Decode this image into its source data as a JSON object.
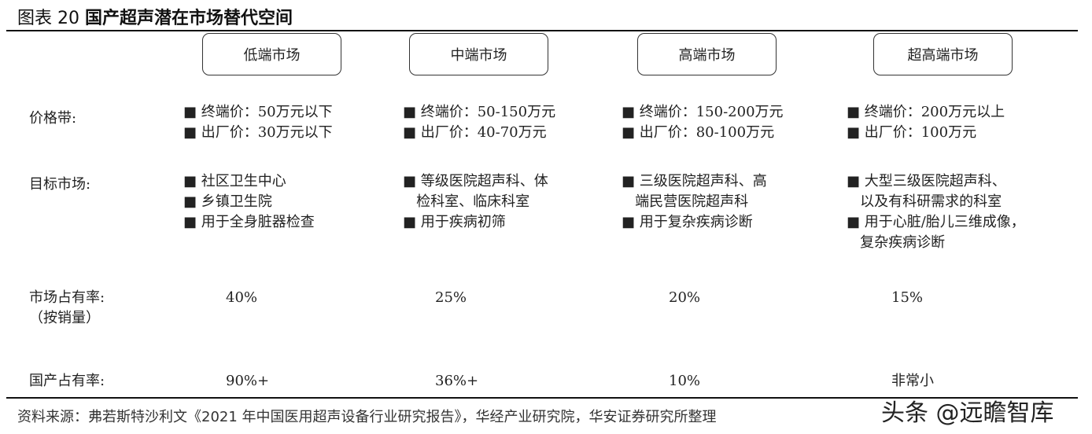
{
  "title": {
    "prefix": "图表 20",
    "text": "国产超声潜在市场替代空间"
  },
  "columns": [
    "低端市场",
    "中端市场",
    "高端市场",
    "超高端市场"
  ],
  "row_labels": {
    "price": "价格带:",
    "target": "目标市场:",
    "share": "市场占有率:",
    "share_sub": "（按销量）",
    "domestic": "国产占有率:"
  },
  "price": [
    [
      "■ 终端价：50万元以下",
      "■ 出厂价：30万元以下"
    ],
    [
      "■ 终端价：50-150万元",
      "■ 出厂价：40-70万元"
    ],
    [
      "■ 终端价：150-200万元",
      "■ 出厂价：80-100万元"
    ],
    [
      "■ 终端价：200万元以上",
      "■ 出厂价：100万元"
    ]
  ],
  "target": [
    [
      "■ 社区卫生中心",
      "■ 乡镇卫生院",
      "■ 用于全身脏器检查"
    ],
    [
      "■ 等级医院超声科、体",
      "   检科室、临床科室",
      "■ 用于疾病初筛"
    ],
    [
      "■ 三级医院超声科、高",
      "   端民营医院超声科",
      "■ 用于复杂疾病诊断"
    ],
    [
      "■ 大型三级医院超声科、",
      "   以及有科研需求的科室",
      "■ 用于心脏/胎儿三维成像，",
      "   复杂疾病诊断"
    ]
  ],
  "share": [
    "40%",
    "25%",
    "20%",
    "15%"
  ],
  "domestic": [
    "90%+",
    "36%+",
    "10%",
    "非常小"
  ],
  "source": "资料来源：弗若斯特沙利文《2021 年中国医用超声设备行业研究报告》，华经产业研究院，华安证券研究所整理",
  "watermark": "头条 @远瞻智库"
}
